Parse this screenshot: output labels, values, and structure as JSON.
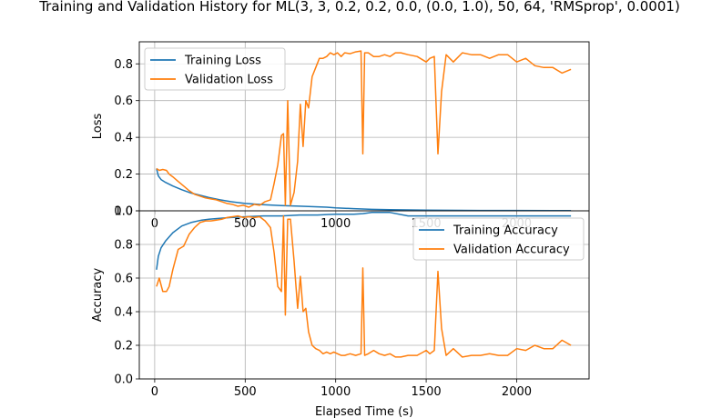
{
  "title": "Training and Validation History for ML(3, 3, 0.2, 0.2, 0.0, (0.0, 1.0), 50, 64, 'RMSprop', 0.0001)",
  "colors": {
    "training": "#1f77b4",
    "validation": "#ff7f0e",
    "grid": "#b0b0b0"
  },
  "chart_data": [
    {
      "type": "line",
      "ylabel": "Loss",
      "xlabel": "",
      "xlim": [
        -85,
        2400
      ],
      "ylim": [
        0,
        0.92
      ],
      "xticks": [
        0,
        500,
        1000,
        1500,
        2000
      ],
      "yticks": [
        "0.0",
        "0.2",
        "0.4",
        "0.6",
        "0.8"
      ],
      "grid": true,
      "legend": "upper-left",
      "series": [
        {
          "name": "Training Loss",
          "color": "#1f77b4",
          "x": [
            10,
            20,
            35,
            60,
            100,
            150,
            200,
            260,
            300,
            360,
            420,
            500,
            600,
            700,
            800,
            900,
            950,
            1000,
            1100,
            1150,
            1200,
            1300,
            1400,
            1500,
            1600,
            1800,
            2000,
            2200,
            2300
          ],
          "y": [
            0.23,
            0.19,
            0.17,
            0.155,
            0.135,
            0.115,
            0.097,
            0.082,
            0.072,
            0.06,
            0.05,
            0.04,
            0.033,
            0.028,
            0.025,
            0.022,
            0.02,
            0.016,
            0.012,
            0.01,
            0.008,
            0.006,
            0.005,
            0.004,
            0.003,
            0.002,
            0.002,
            0.001,
            0.001
          ]
        },
        {
          "name": "Validation Loss",
          "color": "#ff7f0e",
          "x": [
            10,
            25,
            45,
            65,
            80,
            100,
            130,
            160,
            190,
            220,
            250,
            280,
            310,
            340,
            370,
            400,
            430,
            460,
            490,
            520,
            550,
            580,
            610,
            640,
            660,
            680,
            700,
            712,
            722,
            735,
            750,
            770,
            790,
            805,
            820,
            835,
            850,
            870,
            890,
            910,
            930,
            950,
            970,
            990,
            1010,
            1030,
            1050,
            1080,
            1110,
            1140,
            1150,
            1160,
            1180,
            1210,
            1240,
            1270,
            1300,
            1330,
            1360,
            1400,
            1450,
            1500,
            1520,
            1545,
            1565,
            1585,
            1610,
            1650,
            1700,
            1750,
            1800,
            1850,
            1900,
            1950,
            2000,
            2050,
            2100,
            2150,
            2200,
            2250,
            2300
          ],
          "y": [
            0.23,
            0.22,
            0.225,
            0.22,
            0.2,
            0.185,
            0.16,
            0.135,
            0.11,
            0.09,
            0.08,
            0.07,
            0.065,
            0.06,
            0.05,
            0.04,
            0.035,
            0.025,
            0.03,
            0.02,
            0.035,
            0.03,
            0.05,
            0.06,
            0.15,
            0.25,
            0.41,
            0.42,
            0.03,
            0.6,
            0.03,
            0.1,
            0.27,
            0.58,
            0.35,
            0.6,
            0.56,
            0.73,
            0.78,
            0.83,
            0.83,
            0.84,
            0.86,
            0.85,
            0.86,
            0.84,
            0.86,
            0.855,
            0.865,
            0.87,
            0.31,
            0.86,
            0.86,
            0.84,
            0.84,
            0.85,
            0.84,
            0.86,
            0.86,
            0.85,
            0.84,
            0.81,
            0.83,
            0.84,
            0.31,
            0.65,
            0.85,
            0.81,
            0.86,
            0.85,
            0.85,
            0.83,
            0.85,
            0.85,
            0.81,
            0.83,
            0.79,
            0.78,
            0.78,
            0.75,
            0.77
          ]
        }
      ]
    },
    {
      "type": "line",
      "ylabel": "Accuracy",
      "xlabel": "Elapsed Time (s)",
      "xlim": [
        -85,
        2400
      ],
      "ylim": [
        0,
        1.0
      ],
      "xticks": [
        "0",
        "500",
        "1000",
        "1500",
        "2000"
      ],
      "yticks": [
        "0.0",
        "0.2",
        "0.4",
        "0.6",
        "0.8",
        "1.0"
      ],
      "grid": true,
      "legend": "upper-right",
      "series": [
        {
          "name": "Training Accuracy",
          "color": "#1f77b4",
          "x": [
            10,
            20,
            35,
            60,
            100,
            150,
            200,
            260,
            300,
            360,
            420,
            500,
            600,
            700,
            800,
            900,
            950,
            1000,
            1100,
            1150,
            1200,
            1300,
            1400,
            1500,
            1600,
            1800,
            2000,
            2200,
            2300
          ],
          "y": [
            0.65,
            0.73,
            0.78,
            0.82,
            0.87,
            0.91,
            0.93,
            0.945,
            0.95,
            0.955,
            0.96,
            0.965,
            0.97,
            0.97,
            0.975,
            0.975,
            0.978,
            0.98,
            0.98,
            0.983,
            0.99,
            0.99,
            0.97,
            0.97,
            0.97,
            0.97,
            0.97,
            0.97,
            0.97
          ]
        },
        {
          "name": "Validation Accuracy",
          "color": "#ff7f0e",
          "x": [
            10,
            25,
            45,
            65,
            80,
            100,
            130,
            160,
            190,
            220,
            250,
            280,
            310,
            340,
            370,
            400,
            430,
            460,
            490,
            520,
            550,
            580,
            610,
            640,
            660,
            680,
            700,
            712,
            722,
            735,
            750,
            770,
            790,
            805,
            820,
            835,
            850,
            870,
            890,
            910,
            930,
            950,
            970,
            990,
            1010,
            1030,
            1050,
            1080,
            1110,
            1140,
            1150,
            1160,
            1180,
            1210,
            1240,
            1270,
            1300,
            1330,
            1360,
            1400,
            1450,
            1500,
            1520,
            1545,
            1565,
            1585,
            1610,
            1650,
            1700,
            1750,
            1800,
            1850,
            1900,
            1950,
            2000,
            2050,
            2100,
            2150,
            2200,
            2250,
            2300
          ],
          "y": [
            0.55,
            0.6,
            0.52,
            0.52,
            0.55,
            0.65,
            0.77,
            0.79,
            0.86,
            0.9,
            0.93,
            0.94,
            0.94,
            0.945,
            0.95,
            0.96,
            0.965,
            0.97,
            0.96,
            0.965,
            0.96,
            0.965,
            0.94,
            0.9,
            0.75,
            0.55,
            0.52,
            0.97,
            0.38,
            0.95,
            0.95,
            0.7,
            0.42,
            0.61,
            0.4,
            0.42,
            0.28,
            0.2,
            0.18,
            0.17,
            0.15,
            0.16,
            0.15,
            0.16,
            0.15,
            0.14,
            0.14,
            0.15,
            0.14,
            0.15,
            0.66,
            0.14,
            0.15,
            0.17,
            0.15,
            0.14,
            0.15,
            0.13,
            0.13,
            0.14,
            0.14,
            0.17,
            0.15,
            0.17,
            0.64,
            0.3,
            0.14,
            0.18,
            0.13,
            0.14,
            0.14,
            0.15,
            0.14,
            0.14,
            0.18,
            0.17,
            0.2,
            0.18,
            0.18,
            0.23,
            0.2
          ]
        }
      ]
    }
  ]
}
